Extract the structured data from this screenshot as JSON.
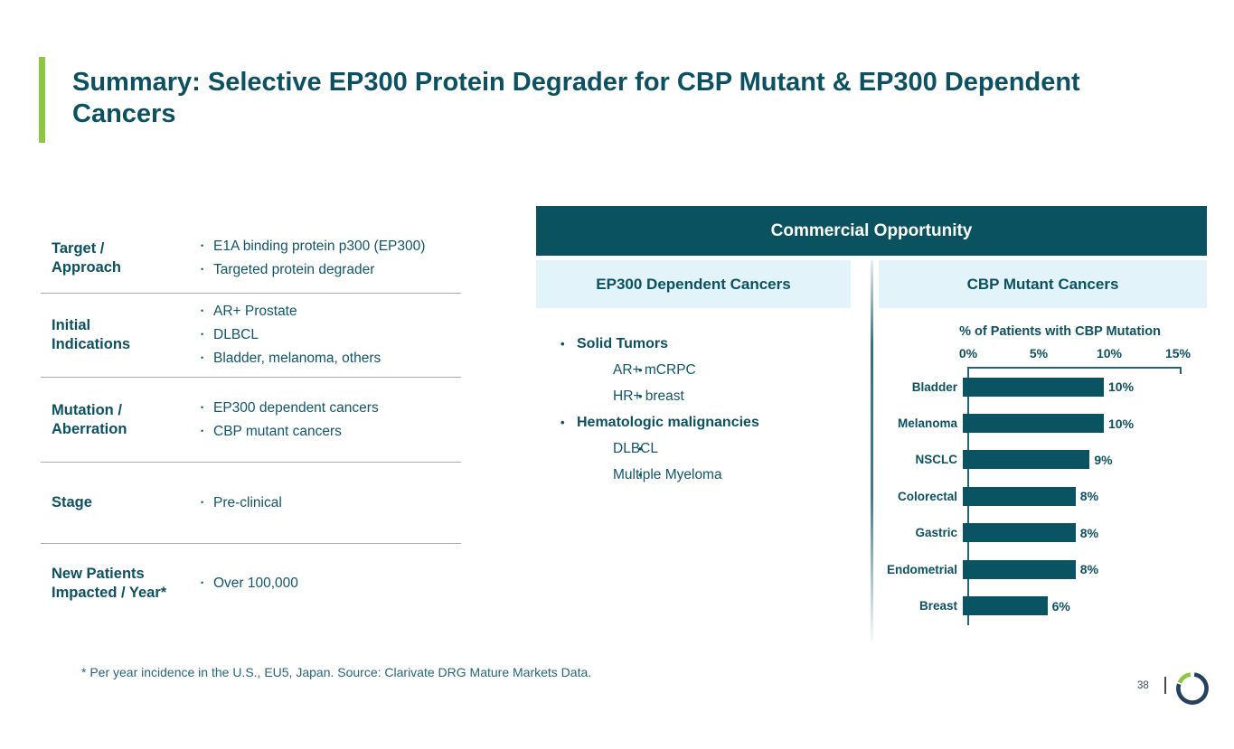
{
  "slide": {
    "title": "Summary: Selective EP300 Protein Degrader for CBP Mutant & EP300 Dependent Cancers",
    "footnote": "* Per year incidence in the U.S., EU5, Japan. Source: Clarivate DRG Mature Markets Data.",
    "page_number": "38"
  },
  "colors": {
    "accent_green": "#8DC63F",
    "teal_heading": "#0C5162",
    "teal_body": "#10566B",
    "band_teal": "#0A525F",
    "panel_blue": "#E2F3FA",
    "bar_teal": "#0A5362",
    "logo_navy": "#24415F"
  },
  "summary_table": {
    "rows": [
      {
        "label_lines": [
          "Target /",
          "Approach"
        ],
        "bullets": [
          "E1A binding protein p300 (EP300)",
          "Targeted protein degrader"
        ]
      },
      {
        "label_lines": [
          "Initial",
          "Indications"
        ],
        "bullets": [
          "AR+ Prostate",
          "DLBCL",
          "Bladder, melanoma, others"
        ]
      },
      {
        "label_lines": [
          "Mutation /",
          "Aberration"
        ],
        "bullets": [
          "EP300 dependent cancers",
          "CBP mutant cancers"
        ]
      },
      {
        "label_lines": [
          "Stage"
        ],
        "bullets": [
          "Pre-clinical"
        ]
      },
      {
        "label_lines": [
          "New Patients",
          "Impacted / Year*"
        ],
        "bullets": [
          "Over 100,000"
        ]
      }
    ]
  },
  "commercial": {
    "header": "Commercial Opportunity",
    "left_panel": {
      "header": "EP300 Dependent Cancers",
      "groups": [
        {
          "label": "Solid Tumors",
          "items": [
            "AR+ mCRPC",
            "HR+ breast"
          ]
        },
        {
          "label": "Hematologic malignancies",
          "items": [
            "DLBCL",
            "Multiple Myeloma"
          ]
        }
      ]
    },
    "right_panel": {
      "header": "CBP Mutant Cancers"
    }
  },
  "chart_data": {
    "type": "bar",
    "orientation": "horizontal",
    "title": "% of Patients with CBP Mutation",
    "categories": [
      "Bladder",
      "Melanoma",
      "NSCLC",
      "Colorectal",
      "Gastric",
      "Endometrial",
      "Breast"
    ],
    "values": [
      10,
      10,
      9,
      8,
      8,
      8,
      6
    ],
    "value_labels": [
      "10%",
      "10%",
      "9%",
      "8%",
      "8%",
      "8%",
      "6%"
    ],
    "x_ticks": [
      "0%",
      "5%",
      "10%",
      "15%"
    ],
    "xlim": [
      0,
      15
    ],
    "axis_position": "top",
    "grid": false,
    "bar_color": "#0A5362"
  }
}
